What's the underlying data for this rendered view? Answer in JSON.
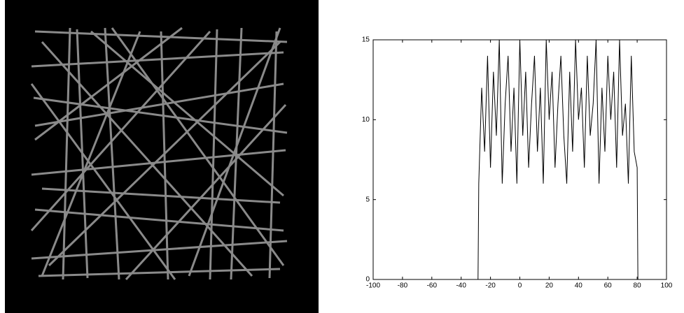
{
  "chart_data": {
    "type": "line",
    "x": [
      -28.5,
      -28,
      -26,
      -24,
      -22,
      -20,
      -18,
      -16,
      -14,
      -12,
      -10,
      -8,
      -6,
      -4,
      -2,
      0,
      2,
      4,
      6,
      8,
      10,
      12,
      14,
      16,
      18,
      20,
      22,
      24,
      26,
      28,
      30,
      32,
      34,
      36,
      38,
      40,
      42,
      44,
      46,
      48,
      50,
      52,
      54,
      56,
      58,
      60,
      62,
      64,
      66,
      68,
      70,
      72,
      74,
      76,
      78,
      80,
      80.5
    ],
    "series": [
      {
        "color": "#000000",
        "values": [
          0,
          6,
          12,
          8,
          14,
          7,
          13,
          9,
          15,
          6,
          11,
          14,
          8,
          12,
          6,
          15,
          9,
          13,
          7,
          11,
          14,
          8,
          12,
          6,
          15,
          10,
          13,
          7,
          11,
          14,
          9,
          6,
          13,
          8,
          15,
          10,
          12,
          7,
          14,
          9,
          11,
          15,
          6,
          12,
          8,
          14,
          10,
          13,
          7,
          15,
          9,
          11,
          6,
          14,
          8,
          7,
          0
        ]
      }
    ],
    "xlim": [
      -100,
      100
    ],
    "ylim": [
      0,
      15
    ],
    "xticks": [
      -100,
      -80,
      -60,
      -40,
      -20,
      0,
      20,
      40,
      60,
      80,
      100
    ],
    "yticks": [
      0,
      5,
      10,
      15
    ],
    "grid": false
  }
}
